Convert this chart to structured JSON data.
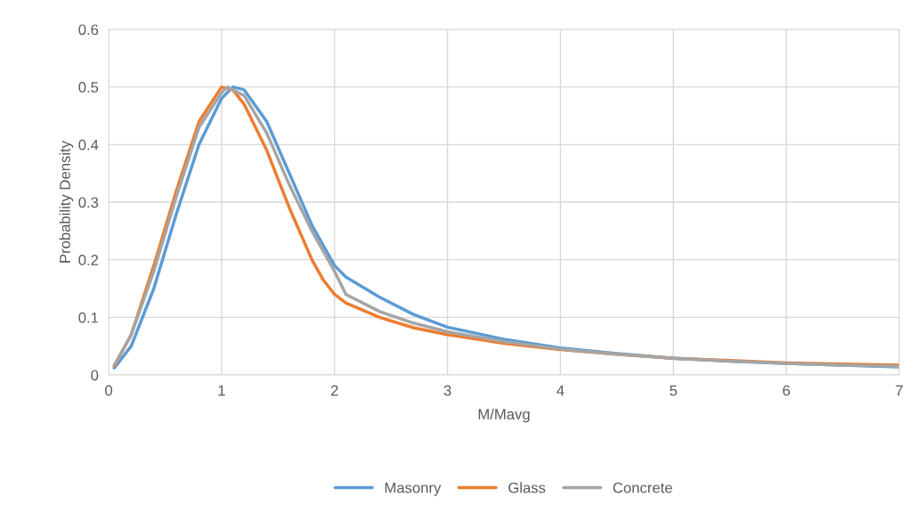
{
  "chart_data": {
    "type": "line",
    "xlabel": "M/Mavg",
    "ylabel": "Probability Density",
    "xlim": [
      0,
      7
    ],
    "xticks": [
      0,
      1,
      2,
      3,
      4,
      5,
      6,
      7
    ],
    "ylim": [
      0,
      0.6
    ],
    "yticks": [
      0,
      0.1,
      0.2,
      0.3,
      0.4,
      0.5,
      0.6
    ],
    "grid": true,
    "legend": "bottom",
    "marker": "none",
    "line_style": "solid",
    "series": [
      {
        "name": "Masonry",
        "color": "#5b9bd5",
        "x": [
          0.05,
          0.2,
          0.4,
          0.6,
          0.8,
          1.0,
          1.1,
          1.2,
          1.4,
          1.6,
          1.8,
          2.0,
          2.1,
          2.4,
          2.7,
          3.0,
          3.5,
          4,
          4.5,
          5,
          5.5,
          6,
          6.5,
          7
        ],
        "values": [
          0.012,
          0.05,
          0.15,
          0.28,
          0.4,
          0.48,
          0.5,
          0.495,
          0.44,
          0.35,
          0.26,
          0.19,
          0.17,
          0.135,
          0.105,
          0.083,
          0.062,
          0.047,
          0.037,
          0.029,
          0.024,
          0.02,
          0.017,
          0.014
        ]
      },
      {
        "name": "Glass",
        "color": "#ed7d31",
        "x": [
          0.05,
          0.2,
          0.4,
          0.6,
          0.8,
          1.0,
          1.1,
          1.2,
          1.4,
          1.6,
          1.8,
          1.9,
          2.0,
          2.1,
          2.4,
          2.7,
          3.0,
          3.5,
          4,
          4.5,
          5,
          5.5,
          6,
          6.5,
          7
        ],
        "values": [
          0.015,
          0.07,
          0.19,
          0.32,
          0.44,
          0.5,
          0.495,
          0.47,
          0.39,
          0.29,
          0.2,
          0.165,
          0.14,
          0.125,
          0.1,
          0.082,
          0.07,
          0.055,
          0.044,
          0.036,
          0.029,
          0.025,
          0.021,
          0.019,
          0.017
        ]
      },
      {
        "name": "Concrete",
        "color": "#a5a5a5",
        "x": [
          0.05,
          0.2,
          0.4,
          0.6,
          0.8,
          1.0,
          1.05,
          1.2,
          1.4,
          1.6,
          1.8,
          2.0,
          2.1,
          2.4,
          2.7,
          3.0,
          3.5,
          4,
          4.5,
          5,
          5.5,
          6,
          6.5,
          7
        ],
        "values": [
          0.017,
          0.07,
          0.18,
          0.31,
          0.43,
          0.49,
          0.5,
          0.485,
          0.42,
          0.33,
          0.25,
          0.18,
          0.14,
          0.11,
          0.09,
          0.075,
          0.058,
          0.045,
          0.036,
          0.029,
          0.024,
          0.02,
          0.017,
          0.015
        ]
      }
    ]
  }
}
